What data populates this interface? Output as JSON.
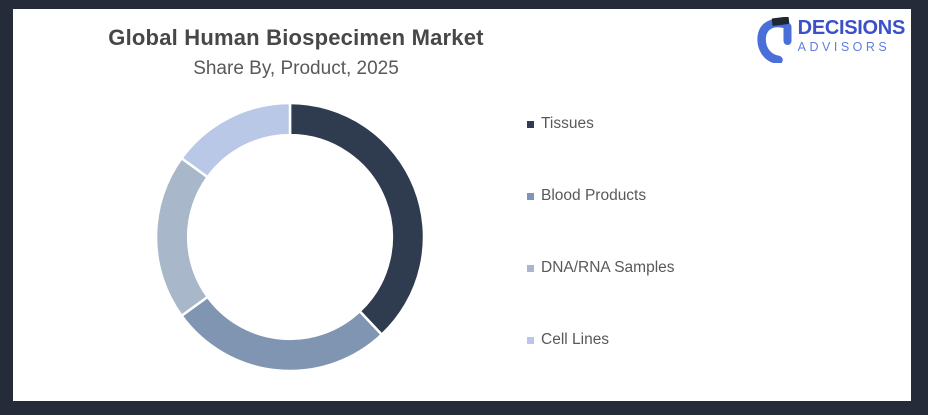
{
  "frame": {
    "border_color": "#252b38",
    "background": "#ffffff"
  },
  "header": {
    "title": "Global Human Biospecimen Market",
    "subtitle": "Share By, Product, 2025",
    "title_color": "#474747",
    "subtitle_color": "#595959"
  },
  "logo": {
    "name": "DECISIONS",
    "sub": "ADVISORS",
    "name_color": "#3b50c9",
    "sub_color": "#5d7ede",
    "icon_color": "#4a6fd8",
    "icon_accent_color": "#1f2734"
  },
  "chart_data": {
    "type": "pie",
    "subtype": "donut",
    "title": "Global Human Biospecimen Market",
    "subtitle": "Share By, Product, 2025",
    "categories": [
      "Tissues",
      "Blood Products",
      "DNA/RNA Samples",
      "Cell Lines"
    ],
    "values": [
      38,
      27,
      20,
      15
    ],
    "unit": "percent share, estimated from arc angles (no data labels shown)",
    "colors": [
      "#2f3b4e",
      "#8095b1",
      "#a8b7c9",
      "#b8c8e6"
    ],
    "start_angle_deg": 0,
    "clockwise": true,
    "donut_hole_ratio": 0.76,
    "segment_border_color": "#ffffff",
    "legend_position": "right",
    "data_labels": false
  },
  "legend": {
    "text_color": "#595959",
    "items": [
      {
        "label": "Tissues",
        "color": "#2f3b4e"
      },
      {
        "label": "Blood Products",
        "color": "#8095b1"
      },
      {
        "label": "DNA/RNA Samples",
        "color": "#a8b7c9"
      },
      {
        "label": "Cell Lines",
        "color": "#b8c8e6"
      }
    ]
  }
}
